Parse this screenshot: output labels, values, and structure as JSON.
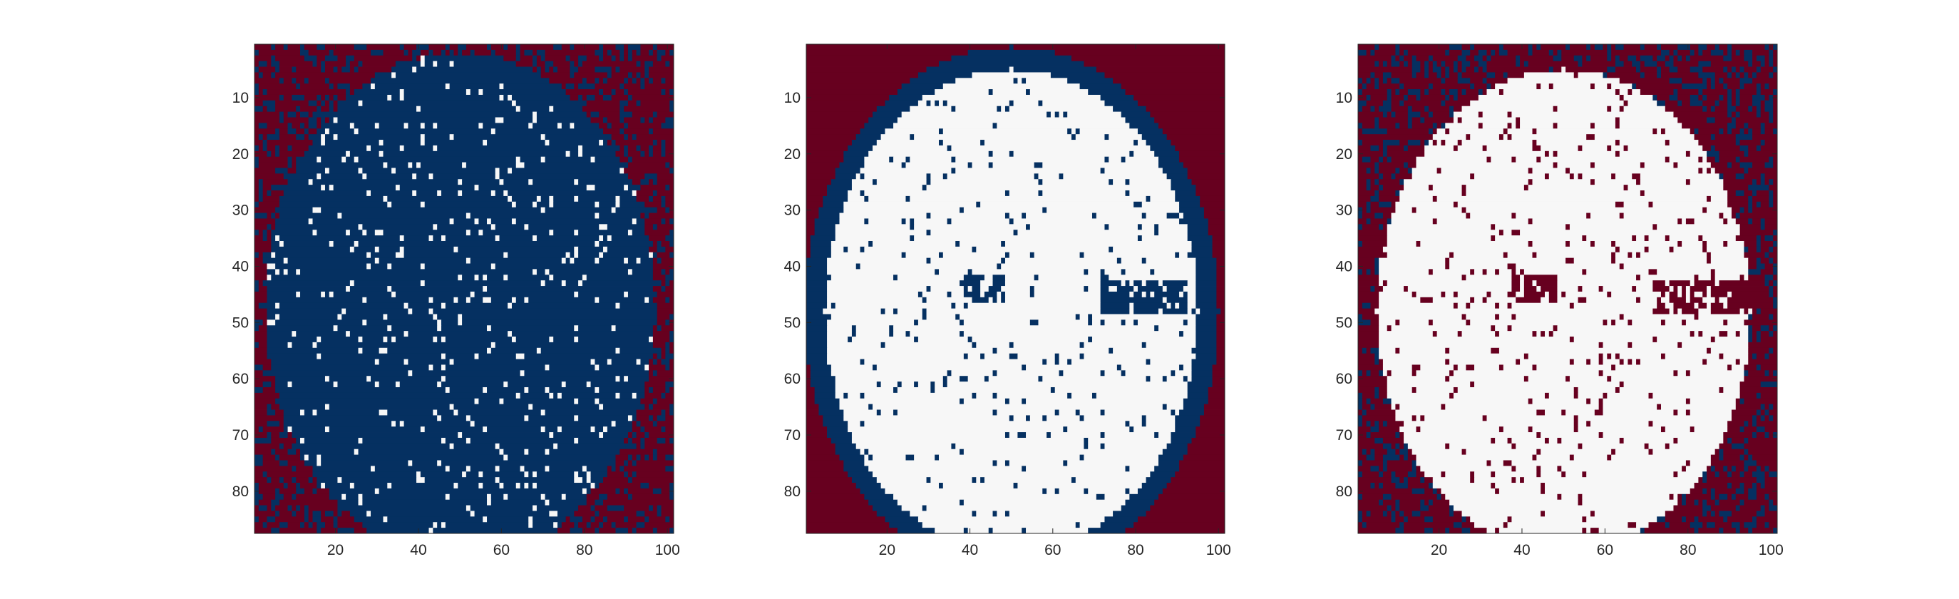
{
  "chart_data": [
    {
      "type": "heatmap",
      "title": "",
      "xlabel": "",
      "ylabel": "",
      "grid_cols": 101,
      "grid_rows": 87,
      "xlim": [
        0.5,
        101.5
      ],
      "ylim": [
        0.5,
        87.5
      ],
      "y_direction": "reversed",
      "xticks": [
        20,
        40,
        60,
        80,
        100
      ],
      "yticks": [
        10,
        20,
        30,
        40,
        50,
        60,
        70,
        80
      ],
      "class_values": [
        -1,
        0,
        1
      ],
      "colors": {
        "-1": "#67001f",
        "0": "#053061",
        "1": "#f7f7f7"
      },
      "pattern": {
        "ellipse_center": [
          50,
          47
        ],
        "ellipse_radii": [
          47,
          45
        ],
        "inside_class": 0,
        "outside_class": -1,
        "outside_speckle_class": 0,
        "outside_speckle_density": 0.25,
        "inside_speckle_class": 1,
        "inside_speckle_density": 0.06
      }
    },
    {
      "type": "heatmap",
      "title": "",
      "xlabel": "",
      "ylabel": "",
      "grid_cols": 101,
      "grid_rows": 87,
      "xlim": [
        0.5,
        101.5
      ],
      "ylim": [
        0.5,
        87.5
      ],
      "y_direction": "reversed",
      "xticks": [
        20,
        40,
        60,
        80,
        100
      ],
      "yticks": [
        10,
        20,
        30,
        40,
        50,
        60,
        70,
        80
      ],
      "class_values": [
        -1,
        0,
        1
      ],
      "colors": {
        "-1": "#67001f",
        "0": "#053061",
        "1": "#f7f7f7"
      },
      "pattern": {
        "ellipse_center": [
          50,
          48
        ],
        "outer_radii": [
          50,
          47
        ],
        "inner_radii": [
          45,
          43
        ],
        "outside_class": -1,
        "ring_class": 0,
        "inside_class": 1,
        "inside_speckle_class": 0,
        "inside_speckle_density": 0.05,
        "eye_bands": [
          {
            "x": [
              38,
              48
            ],
            "y": [
              42,
              46
            ],
            "class": 0
          },
          {
            "x": [
              72,
              92
            ],
            "y": [
              43,
              48
            ],
            "class": 0
          }
        ]
      }
    },
    {
      "type": "heatmap",
      "title": "",
      "xlabel": "",
      "ylabel": "",
      "grid_cols": 101,
      "grid_rows": 87,
      "xlim": [
        0.5,
        101.5
      ],
      "ylim": [
        0.5,
        87.5
      ],
      "y_direction": "reversed",
      "xticks": [
        20,
        40,
        60,
        80,
        100
      ],
      "yticks": [
        10,
        20,
        30,
        40,
        50,
        60,
        70,
        80
      ],
      "class_values": [
        -1,
        0,
        1
      ],
      "colors": {
        "-1": "#67001f",
        "0": "#053061",
        "1": "#f7f7f7"
      },
      "pattern": {
        "ellipse_center": [
          50,
          48
        ],
        "outer_radii": [
          50,
          47
        ],
        "inner_radii": [
          45,
          43
        ],
        "outside_class": -1,
        "outside_speckle_class": 0,
        "outside_speckle_density": 0.3,
        "ring_class": -1,
        "inside_class": 1,
        "inside_speckle_class": -1,
        "inside_speckle_density": 0.06,
        "eye_bands": [
          {
            "x": [
              38,
              48
            ],
            "y": [
              42,
              46
            ],
            "class": -1
          },
          {
            "x": [
              72,
              94
            ],
            "y": [
              43,
              48
            ],
            "class": -1
          }
        ]
      }
    }
  ]
}
